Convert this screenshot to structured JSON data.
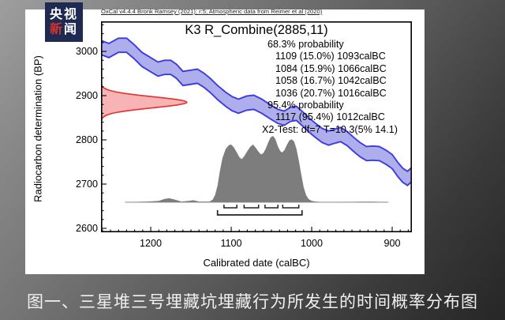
{
  "logo": {
    "row1": "央视",
    "row2_red": "新",
    "row2_rest": "闻",
    "bg_color": "#1f2a52",
    "accent_color": "#d0342c"
  },
  "caption": "图一、三星堆三号埋藏坑埋藏行为所发生的时间概率分布图",
  "chart": {
    "credit": "OxCal v4.4.4 Bronk Ramsey (2021); r:5; Atmospheric data from Reimer et al (2020)",
    "title": "K3 R_Combine(2885,11)",
    "stats_lines": [
      {
        "text": "68.3% probability",
        "indent": 1
      },
      {
        "text": "1109 (15.0%) 1093calBC",
        "indent": 2
      },
      {
        "text": "1084 (15.9%) 1066calBC",
        "indent": 2
      },
      {
        "text": "1058 (16.7%) 1042calBC",
        "indent": 2
      },
      {
        "text": "1036 (20.7%) 1016calBC",
        "indent": 2
      },
      {
        "text": "95.4% probability",
        "indent": 1
      },
      {
        "text": "1117 (95.4%) 1012calBC",
        "indent": 2
      },
      {
        "text": "X2-Test: df=7 T=10.3(5% 14.1)",
        "indent": 0
      }
    ],
    "y_axis": {
      "label": "Radiocarbon determination (BP)",
      "ticks": [
        3000,
        2900,
        2800,
        2700,
        2600
      ],
      "minor_step": 20
    },
    "x_axis": {
      "label": "Calibrated date (calBC)",
      "ticks": [
        1200,
        1100,
        1000,
        900
      ],
      "minor_step": 10
    }
  },
  "chart_data": {
    "type": "area",
    "title": "K3 R_Combine(2885,11)",
    "xlabel": "Calibrated date (calBC)",
    "ylabel": "Radiocarbon determination (BP)",
    "x_range_calBC": [
      1261.8,
      875.5
    ],
    "y_range_BP": [
      3068,
      2591
    ],
    "r_combine": {
      "mean_bp": 2885,
      "error_bp": 11,
      "draw_sd_bp": 12.5,
      "draw_extent_bp": 42,
      "tip_year": 1155
    },
    "calibration_curve": {
      "name": "atmospheric-curve-band",
      "band_halfwidth_bp": 16,
      "points": [
        [
          1262,
          3009
        ],
        [
          1252,
          3002
        ],
        [
          1240,
          3014
        ],
        [
          1230,
          3014
        ],
        [
          1221,
          3000
        ],
        [
          1211,
          2982
        ],
        [
          1201,
          2971
        ],
        [
          1191,
          2960
        ],
        [
          1183,
          2964
        ],
        [
          1175,
          2964
        ],
        [
          1168,
          2955
        ],
        [
          1160,
          2939
        ],
        [
          1152,
          2941
        ],
        [
          1142,
          2944
        ],
        [
          1134,
          2935
        ],
        [
          1126,
          2923
        ],
        [
          1117,
          2907
        ],
        [
          1107,
          2892
        ],
        [
          1099,
          2882
        ],
        [
          1091,
          2876
        ],
        [
          1081,
          2883
        ],
        [
          1072,
          2885
        ],
        [
          1062,
          2876
        ],
        [
          1052,
          2864
        ],
        [
          1042,
          2853
        ],
        [
          1034,
          2849
        ],
        [
          1026,
          2858
        ],
        [
          1019,
          2860
        ],
        [
          1011,
          2847
        ],
        [
          1003,
          2833
        ],
        [
          995,
          2821
        ],
        [
          987,
          2810
        ],
        [
          979,
          2804
        ],
        [
          972,
          2808
        ],
        [
          964,
          2812
        ],
        [
          956,
          2803
        ],
        [
          948,
          2790
        ],
        [
          940,
          2778
        ],
        [
          932,
          2769
        ],
        [
          924,
          2770
        ],
        [
          916,
          2769
        ],
        [
          908,
          2761
        ],
        [
          900,
          2751
        ],
        [
          893,
          2733
        ],
        [
          887,
          2720
        ],
        [
          881,
          2713
        ],
        [
          875,
          2723
        ]
      ]
    },
    "calibrated_distribution": {
      "baseline_bp": 2659,
      "peak_height_bp": 150,
      "baseline_year_span": [
        1232,
        905
      ],
      "points": [
        [
          1230,
          0
        ],
        [
          1205,
          0.01
        ],
        [
          1190,
          0.02
        ],
        [
          1183,
          0.05
        ],
        [
          1177,
          0.06
        ],
        [
          1170,
          0.04
        ],
        [
          1162,
          0.01
        ],
        [
          1153,
          0.02
        ],
        [
          1147,
          0.03
        ],
        [
          1140,
          0.01
        ],
        [
          1132,
          0.01
        ],
        [
          1127,
          0.01
        ],
        [
          1123,
          0.04
        ],
        [
          1120,
          0.11
        ],
        [
          1117,
          0.25
        ],
        [
          1114,
          0.47
        ],
        [
          1111,
          0.66
        ],
        [
          1107,
          0.8
        ],
        [
          1103,
          0.86
        ],
        [
          1100,
          0.87
        ],
        [
          1097,
          0.83
        ],
        [
          1093,
          0.75
        ],
        [
          1090,
          0.68
        ],
        [
          1087,
          0.65
        ],
        [
          1084,
          0.69
        ],
        [
          1080,
          0.77
        ],
        [
          1076,
          0.84
        ],
        [
          1073,
          0.87
        ],
        [
          1070,
          0.83
        ],
        [
          1066,
          0.76
        ],
        [
          1063,
          0.72
        ],
        [
          1060,
          0.74
        ],
        [
          1057,
          0.81
        ],
        [
          1054,
          0.9
        ],
        [
          1051,
          0.98
        ],
        [
          1048,
          1.0
        ],
        [
          1045,
          0.95
        ],
        [
          1042,
          0.84
        ],
        [
          1039,
          0.77
        ],
        [
          1037,
          0.75
        ],
        [
          1034,
          0.78
        ],
        [
          1031,
          0.86
        ],
        [
          1028,
          0.93
        ],
        [
          1025,
          0.95
        ],
        [
          1022,
          0.92
        ],
        [
          1019,
          0.81
        ],
        [
          1016,
          0.63
        ],
        [
          1013,
          0.42
        ],
        [
          1010,
          0.23
        ],
        [
          1007,
          0.11
        ],
        [
          1004,
          0.05
        ],
        [
          1000,
          0.02
        ],
        [
          995,
          0.01
        ],
        [
          985,
          0
        ],
        [
          950,
          0.005
        ],
        [
          935,
          0.007
        ],
        [
          925,
          0.008
        ],
        [
          915,
          0.005
        ],
        [
          900,
          0
        ]
      ]
    },
    "ranges_68": [
      {
        "from": 1109,
        "to": 1093,
        "p": "15.0%"
      },
      {
        "from": 1084,
        "to": 1066,
        "p": "15.9%"
      },
      {
        "from": 1058,
        "to": 1042,
        "p": "16.7%"
      },
      {
        "from": 1036,
        "to": 1016,
        "p": "20.7%"
      }
    ],
    "range_95": {
      "from": 1117,
      "to": 1012,
      "p": "95.4%"
    },
    "chi2_test": "X2-Test: df=7 T=10.3(5% 14.1)",
    "colors": {
      "band_fill": "#aeaeec",
      "band_stroke": "#3b3be0",
      "gauss_fill": "#f8b4b4",
      "gauss_stroke": "#e53030",
      "dist_fill": "#7d7d7d",
      "axis": "#000000"
    }
  }
}
